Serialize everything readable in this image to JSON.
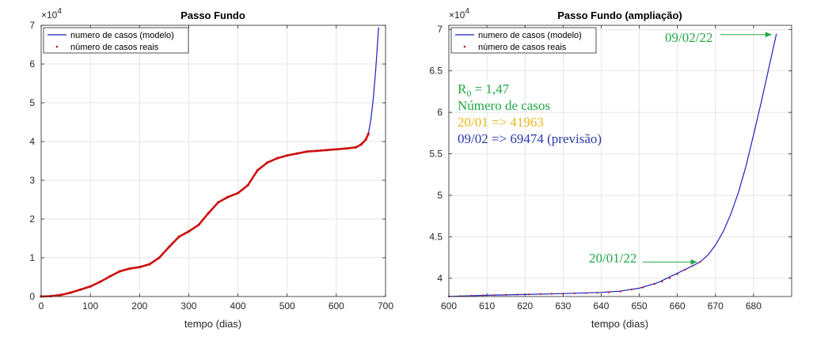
{
  "chart_data": [
    {
      "type": "line",
      "title": "Passo Fundo",
      "xlabel": "tempo (dias)",
      "ylabel": "",
      "exponent_label": "×10",
      "exponent_power": "4",
      "xlim": [
        0,
        700
      ],
      "ylim": [
        0,
        70000
      ],
      "xticks": [
        0,
        100,
        200,
        300,
        400,
        500,
        600,
        700
      ],
      "yticks": [
        0,
        10000,
        20000,
        30000,
        40000,
        50000,
        60000,
        70000
      ],
      "ytick_labels": [
        "0",
        "1",
        "2",
        "3",
        "4",
        "5",
        "6",
        "7"
      ],
      "grid": true,
      "legend_position": "top-left",
      "series": [
        {
          "name": "numero de casos (modelo)",
          "style": "line",
          "color": "#1f1fbf",
          "x": [
            0,
            20,
            40,
            60,
            80,
            100,
            120,
            140,
            160,
            180,
            200,
            220,
            240,
            260,
            280,
            300,
            320,
            340,
            360,
            380,
            400,
            420,
            440,
            460,
            480,
            500,
            520,
            540,
            560,
            580,
            600,
            620,
            640,
            650,
            660,
            665,
            670,
            675,
            680,
            686
          ],
          "y": [
            0,
            100,
            400,
            1000,
            1800,
            2600,
            3800,
            5200,
            6500,
            7200,
            7600,
            8300,
            10000,
            12800,
            15400,
            16800,
            18500,
            21500,
            24300,
            25700,
            26700,
            28700,
            32600,
            34600,
            35700,
            36400,
            36900,
            37400,
            37600,
            37800,
            38000,
            38200,
            38500,
            39200,
            40500,
            41963,
            45500,
            51000,
            58500,
            69474
          ]
        },
        {
          "name": "número de casos reais",
          "style": "markers",
          "color": "#cc1111",
          "x": [
            0,
            20,
            40,
            60,
            80,
            100,
            120,
            140,
            160,
            180,
            200,
            220,
            240,
            260,
            280,
            300,
            320,
            340,
            360,
            380,
            400,
            420,
            440,
            460,
            480,
            500,
            520,
            540,
            560,
            580,
            600,
            620,
            640,
            650,
            660,
            665
          ],
          "y": [
            0,
            100,
            400,
            1000,
            1800,
            2600,
            3800,
            5200,
            6500,
            7200,
            7600,
            8300,
            10000,
            12800,
            15400,
            16800,
            18500,
            21500,
            24300,
            25700,
            26700,
            28700,
            32600,
            34600,
            35700,
            36400,
            36900,
            37400,
            37600,
            37800,
            38000,
            38200,
            38500,
            39200,
            40500,
            41963
          ]
        }
      ]
    },
    {
      "type": "line",
      "title": "Passo Fundo (ampliação)",
      "xlabel": "tempo (dias)",
      "ylabel": "",
      "exponent_label": "×10",
      "exponent_power": "4",
      "xlim": [
        600,
        690
      ],
      "ylim": [
        37800,
        70500
      ],
      "xticks": [
        600,
        610,
        620,
        630,
        640,
        650,
        660,
        670,
        680
      ],
      "yticks": [
        40000,
        45000,
        50000,
        55000,
        60000,
        65000,
        70000
      ],
      "ytick_labels": [
        "4",
        "4.5",
        "5",
        "5.5",
        "6",
        "6.5",
        "7"
      ],
      "grid": true,
      "legend_position": "top-left",
      "series": [
        {
          "name": "numero de casos (modelo)",
          "style": "line",
          "color": "#1f1fbf",
          "x": [
            600,
            610,
            620,
            630,
            640,
            645,
            650,
            655,
            660,
            664,
            666,
            668,
            670,
            672,
            674,
            676,
            678,
            680,
            682,
            684,
            686
          ],
          "y": [
            37800,
            37950,
            38050,
            38150,
            38300,
            38450,
            38800,
            39500,
            40600,
            41500,
            41963,
            42800,
            44000,
            45600,
            47700,
            50300,
            53500,
            57300,
            61200,
            65300,
            69474
          ]
        },
        {
          "name": "número de casos reais",
          "style": "markers",
          "color": "#cc1111",
          "x": [
            600,
            603,
            606,
            609,
            612,
            615,
            618,
            621,
            624,
            627,
            630,
            633,
            636,
            639,
            642,
            645,
            648,
            651,
            654,
            656,
            658,
            660,
            662,
            664,
            666
          ],
          "y": [
            37800,
            37850,
            37900,
            37930,
            37960,
            38000,
            38040,
            38070,
            38100,
            38130,
            38150,
            38180,
            38200,
            38250,
            38300,
            38400,
            38650,
            38900,
            39300,
            39600,
            40000,
            40500,
            41000,
            41500,
            41963
          ]
        }
      ],
      "annotations": {
        "r0": "R",
        "r0_sub": "0",
        "r0_value": " = 1,47",
        "cases_title": "Número de casos",
        "real_line": "20/01 => 41963",
        "forecast_line": "09/02 => 69474 (previsão)",
        "arrow_top_label": "09/02/22",
        "arrow_bottom_label": "20/01/22",
        "color_green": "#22a845",
        "color_yellow": "#e8b71a",
        "color_blue": "#2a3aa8"
      }
    }
  ]
}
